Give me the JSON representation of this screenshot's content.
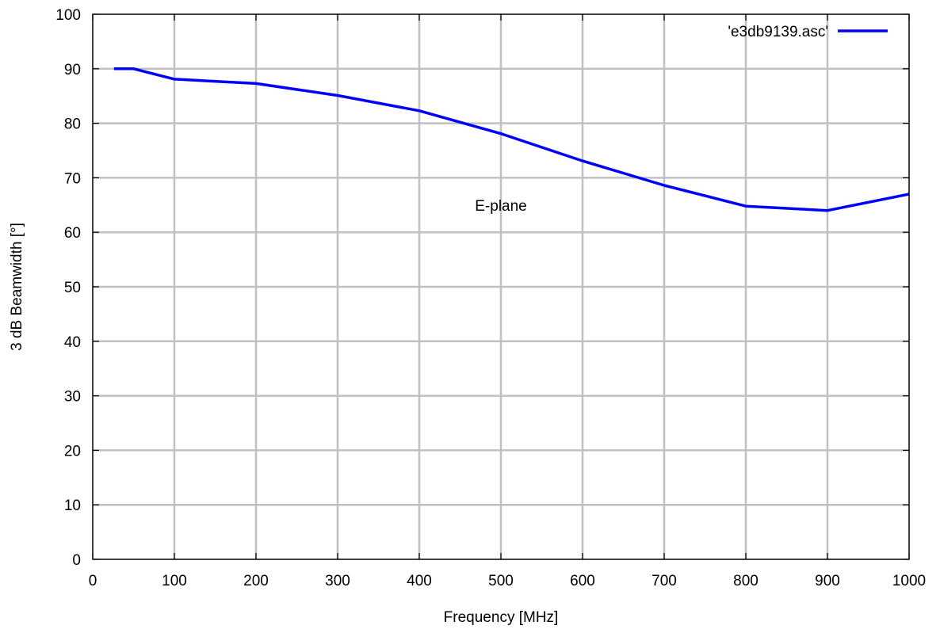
{
  "chart_data": {
    "type": "line",
    "title": "",
    "xlabel": "Frequency [MHz]",
    "ylabel": "3 dB Beamwidth [°]",
    "xlim": [
      0,
      1000
    ],
    "ylim": [
      0,
      100
    ],
    "xticks": [
      0,
      100,
      200,
      300,
      400,
      500,
      600,
      700,
      800,
      900,
      1000
    ],
    "yticks": [
      0,
      10,
      20,
      30,
      40,
      50,
      60,
      70,
      80,
      90,
      100
    ],
    "grid": true,
    "legend_position": "top-right",
    "annotations": [
      {
        "text": "E-plane",
        "x": 500,
        "y": 65
      }
    ],
    "series": [
      {
        "name": "'e3db9139.asc'",
        "color": "#0000ff",
        "x": [
          26,
          50,
          100,
          200,
          300,
          400,
          500,
          600,
          700,
          800,
          900,
          1000
        ],
        "y": [
          90,
          90,
          88.1,
          87.3,
          85.1,
          82.3,
          78.1,
          73.1,
          68.6,
          64.8,
          64.0,
          67.0
        ]
      }
    ]
  }
}
